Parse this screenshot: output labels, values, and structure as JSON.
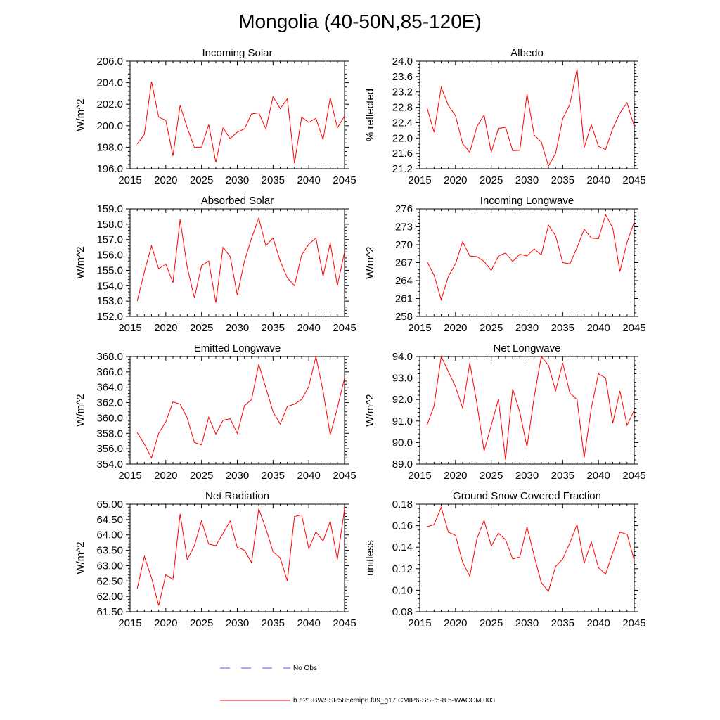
{
  "figure_title": "Mongolia (40-50N,85-120E)",
  "colors": {
    "series": "#ff0000",
    "no_obs": "#4f4fff",
    "axis": "#000000"
  },
  "legend": {
    "no_obs_label": "No Obs",
    "model_label": "b.e21.BWSSP585cmip6.f09_g17.CMIP6-SSP5-8.5-WACCM.003"
  },
  "chart_data": [
    {
      "type": "line",
      "title": "Incoming Solar",
      "ylabel": "W/m^2",
      "xlabel": "",
      "xlim": [
        2015,
        2045
      ],
      "ylim": [
        196,
        206
      ],
      "xticks": [
        2015,
        2020,
        2025,
        2030,
        2035,
        2040,
        2045
      ],
      "yticks": [
        "196.0",
        "198.0",
        "200.0",
        "202.0",
        "204.0",
        "206.0"
      ],
      "x": [
        2016,
        2017,
        2018,
        2019,
        2020,
        2021,
        2022,
        2023,
        2024,
        2025,
        2026,
        2027,
        2028,
        2029,
        2030,
        2031,
        2032,
        2033,
        2034,
        2035,
        2036,
        2037,
        2038,
        2039,
        2040,
        2041,
        2042,
        2043,
        2044,
        2045
      ],
      "series": [
        {
          "name": "b.e21.BWSSP585cmip6.f09_g17.CMIP6-SSP5-8.5-WACCM.003",
          "values": [
            198.3,
            199.2,
            204.1,
            200.8,
            200.5,
            197.2,
            201.9,
            199.8,
            198.0,
            198.0,
            200.1,
            196.6,
            199.8,
            198.8,
            199.4,
            199.7,
            201.1,
            201.2,
            199.7,
            202.7,
            201.6,
            202.5,
            196.5,
            200.8,
            200.3,
            200.7,
            198.7,
            202.6,
            199.8,
            200.9
          ]
        }
      ]
    },
    {
      "type": "line",
      "title": "Albedo",
      "ylabel": "% reflected",
      "xlabel": "",
      "xlim": [
        2015,
        2045
      ],
      "ylim": [
        21.2,
        24.0
      ],
      "xticks": [
        2015,
        2020,
        2025,
        2030,
        2035,
        2040,
        2045
      ],
      "yticks": [
        "21.2",
        "21.6",
        "22.0",
        "22.4",
        "22.8",
        "23.2",
        "23.6",
        "24.0"
      ],
      "x": [
        2016,
        2017,
        2018,
        2019,
        2020,
        2021,
        2022,
        2023,
        2024,
        2025,
        2026,
        2027,
        2028,
        2029,
        2030,
        2031,
        2032,
        2033,
        2034,
        2035,
        2036,
        2037,
        2038,
        2039,
        2040,
        2041,
        2042,
        2043,
        2044,
        2045
      ],
      "series": [
        {
          "name": "b.e21.BWSSP585cmip6.f09_g17.CMIP6-SSP5-8.5-WACCM.003",
          "values": [
            22.8,
            22.15,
            23.32,
            22.85,
            22.58,
            21.85,
            21.63,
            22.3,
            22.6,
            21.63,
            22.25,
            22.28,
            21.67,
            21.68,
            23.15,
            22.08,
            21.9,
            21.27,
            21.6,
            22.5,
            22.88,
            23.8,
            21.75,
            22.35,
            21.78,
            21.7,
            22.25,
            22.65,
            22.92,
            22.3
          ]
        }
      ]
    },
    {
      "type": "line",
      "title": "Absorbed Solar",
      "ylabel": "W/m^2",
      "xlabel": "",
      "xlim": [
        2015,
        2045
      ],
      "ylim": [
        152,
        159
      ],
      "xticks": [
        2015,
        2020,
        2025,
        2030,
        2035,
        2040,
        2045
      ],
      "yticks": [
        "152.0",
        "153.0",
        "154.0",
        "155.0",
        "156.0",
        "157.0",
        "158.0",
        "159.0"
      ],
      "x": [
        2016,
        2017,
        2018,
        2019,
        2020,
        2021,
        2022,
        2023,
        2024,
        2025,
        2026,
        2027,
        2028,
        2029,
        2030,
        2031,
        2032,
        2033,
        2034,
        2035,
        2036,
        2037,
        2038,
        2039,
        2040,
        2041,
        2042,
        2043,
        2044,
        2045
      ],
      "series": [
        {
          "name": "b.e21.BWSSP585cmip6.f09_g17.CMIP6-SSP5-8.5-WACCM.003",
          "values": [
            153.0,
            154.9,
            156.6,
            155.1,
            155.4,
            154.2,
            158.3,
            155.2,
            153.2,
            155.3,
            155.6,
            152.9,
            156.5,
            155.9,
            153.4,
            155.6,
            157.1,
            158.4,
            156.6,
            157.1,
            155.6,
            154.5,
            154.0,
            156.0,
            156.7,
            157.1,
            154.6,
            156.8,
            154.0,
            156.2
          ]
        }
      ]
    },
    {
      "type": "line",
      "title": "Incoming Longwave",
      "ylabel": "W/m^2",
      "xlabel": "",
      "xlim": [
        2015,
        2045
      ],
      "ylim": [
        258,
        276
      ],
      "xticks": [
        2015,
        2020,
        2025,
        2030,
        2035,
        2040,
        2045
      ],
      "yticks": [
        "258",
        "261",
        "264",
        "267",
        "270",
        "273",
        "276"
      ],
      "x": [
        2016,
        2017,
        2018,
        2019,
        2020,
        2021,
        2022,
        2023,
        2024,
        2025,
        2026,
        2027,
        2028,
        2029,
        2030,
        2031,
        2032,
        2033,
        2034,
        2035,
        2036,
        2037,
        2038,
        2039,
        2040,
        2041,
        2042,
        2043,
        2044,
        2045
      ],
      "series": [
        {
          "name": "b.e21.BWSSP585cmip6.f09_g17.CMIP6-SSP5-8.5-WACCM.003",
          "values": [
            267.2,
            264.9,
            260.8,
            264.7,
            266.8,
            270.5,
            268.1,
            268.0,
            267.2,
            265.7,
            268.1,
            268.6,
            267.2,
            268.4,
            268.1,
            269.3,
            268.3,
            273.3,
            271.5,
            267.0,
            266.8,
            269.5,
            272.6,
            271.1,
            271.0,
            275.0,
            272.8,
            265.5,
            270.4,
            273.8
          ]
        }
      ]
    },
    {
      "type": "line",
      "title": "Emitted Longwave",
      "ylabel": "W/m^2",
      "xlabel": "",
      "xlim": [
        2015,
        2045
      ],
      "ylim": [
        354,
        368
      ],
      "xticks": [
        2015,
        2020,
        2025,
        2030,
        2035,
        2040,
        2045
      ],
      "yticks": [
        "354.0",
        "356.0",
        "358.0",
        "360.0",
        "362.0",
        "364.0",
        "366.0",
        "368.0"
      ],
      "x": [
        2016,
        2017,
        2018,
        2019,
        2020,
        2021,
        2022,
        2023,
        2024,
        2025,
        2026,
        2027,
        2028,
        2029,
        2030,
        2031,
        2032,
        2033,
        2034,
        2035,
        2036,
        2037,
        2038,
        2039,
        2040,
        2041,
        2042,
        2043,
        2044,
        2045
      ],
      "series": [
        {
          "name": "b.e21.BWSSP585cmip6.f09_g17.CMIP6-SSP5-8.5-WACCM.003",
          "values": [
            358.1,
            356.6,
            354.8,
            358.0,
            359.5,
            362.1,
            361.8,
            360.0,
            356.8,
            356.5,
            360.1,
            357.9,
            359.7,
            359.9,
            358.0,
            361.6,
            362.4,
            367.0,
            363.9,
            360.8,
            359.2,
            361.5,
            361.8,
            362.4,
            364.1,
            368.0,
            363.5,
            357.8,
            361.3,
            365.2
          ]
        }
      ]
    },
    {
      "type": "line",
      "title": "Net Longwave",
      "ylabel": "W/m^2",
      "xlabel": "",
      "xlim": [
        2015,
        2045
      ],
      "ylim": [
        89,
        94
      ],
      "xticks": [
        2015,
        2020,
        2025,
        2030,
        2035,
        2040,
        2045
      ],
      "yticks": [
        "89.0",
        "90.0",
        "91.0",
        "92.0",
        "93.0",
        "94.0"
      ],
      "x": [
        2016,
        2017,
        2018,
        2019,
        2020,
        2021,
        2022,
        2023,
        2024,
        2025,
        2026,
        2027,
        2028,
        2029,
        2030,
        2031,
        2032,
        2033,
        2034,
        2035,
        2036,
        2037,
        2038,
        2039,
        2040,
        2041,
        2042,
        2043,
        2044,
        2045
      ],
      "series": [
        {
          "name": "b.e21.BWSSP585cmip6.f09_g17.CMIP6-SSP5-8.5-WACCM.003",
          "values": [
            90.8,
            91.7,
            94.0,
            93.3,
            92.6,
            91.6,
            93.7,
            91.8,
            89.6,
            90.8,
            92.0,
            89.2,
            92.5,
            91.4,
            89.8,
            92.1,
            94.0,
            93.6,
            92.4,
            93.7,
            92.3,
            92.0,
            89.3,
            91.6,
            93.2,
            93.0,
            90.9,
            92.4,
            90.8,
            91.5
          ]
        }
      ]
    },
    {
      "type": "line",
      "title": "Net Radiation",
      "ylabel": "W/m^2",
      "xlabel": "",
      "xlim": [
        2015,
        2045
      ],
      "ylim": [
        61.5,
        65.0
      ],
      "xticks": [
        2015,
        2020,
        2025,
        2030,
        2035,
        2040,
        2045
      ],
      "yticks": [
        "61.50",
        "62.00",
        "62.50",
        "63.00",
        "63.50",
        "64.00",
        "64.50",
        "65.00"
      ],
      "x": [
        2016,
        2017,
        2018,
        2019,
        2020,
        2021,
        2022,
        2023,
        2024,
        2025,
        2026,
        2027,
        2028,
        2029,
        2030,
        2031,
        2032,
        2033,
        2034,
        2035,
        2036,
        2037,
        2038,
        2039,
        2040,
        2041,
        2042,
        2043,
        2044,
        2045
      ],
      "series": [
        {
          "name": "b.e21.BWSSP585cmip6.f09_g17.CMIP6-SSP5-8.5-WACCM.003",
          "values": [
            62.25,
            63.3,
            62.6,
            61.7,
            62.7,
            62.55,
            64.68,
            63.2,
            63.65,
            64.45,
            63.7,
            63.65,
            64.05,
            64.45,
            63.6,
            63.5,
            63.1,
            64.85,
            64.2,
            63.45,
            63.25,
            62.5,
            64.6,
            64.65,
            63.55,
            64.1,
            63.8,
            64.45,
            63.2,
            64.85
          ]
        }
      ]
    },
    {
      "type": "line",
      "title": "Ground Snow Covered Fraction",
      "ylabel": "unitless",
      "xlabel": "",
      "xlim": [
        2015,
        2045
      ],
      "ylim": [
        0.08,
        0.18
      ],
      "xticks": [
        2015,
        2020,
        2025,
        2030,
        2035,
        2040,
        2045
      ],
      "yticks": [
        "0.08",
        "0.10",
        "0.12",
        "0.14",
        "0.16",
        "0.18"
      ],
      "x": [
        2016,
        2017,
        2018,
        2019,
        2020,
        2021,
        2022,
        2023,
        2024,
        2025,
        2026,
        2027,
        2028,
        2029,
        2030,
        2031,
        2032,
        2033,
        2034,
        2035,
        2036,
        2037,
        2038,
        2039,
        2040,
        2041,
        2042,
        2043,
        2044,
        2045
      ],
      "series": [
        {
          "name": "b.e21.BWSSP585cmip6.f09_g17.CMIP6-SSP5-8.5-WACCM.003",
          "values": [
            0.159,
            0.161,
            0.177,
            0.154,
            0.151,
            0.126,
            0.113,
            0.148,
            0.165,
            0.141,
            0.153,
            0.147,
            0.129,
            0.131,
            0.159,
            0.132,
            0.107,
            0.099,
            0.122,
            0.129,
            0.144,
            0.161,
            0.125,
            0.145,
            0.121,
            0.115,
            0.135,
            0.154,
            0.152,
            0.128
          ]
        }
      ]
    }
  ]
}
